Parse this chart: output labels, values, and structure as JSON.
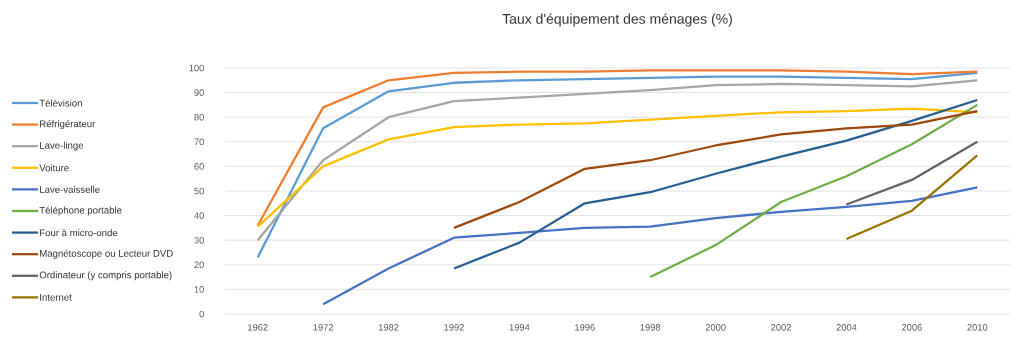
{
  "chart_data": {
    "type": "line",
    "title": "Taux d'équipement des ménages (%)",
    "categories": [
      "1962",
      "1972",
      "1982",
      "1992",
      "1994",
      "1996",
      "1998",
      "2000",
      "2002",
      "2004",
      "2006",
      "2010"
    ],
    "series": [
      {
        "name": "Télévision",
        "color": "#5b9bd5",
        "values": [
          23,
          75.5,
          90.5,
          94,
          95,
          95.5,
          96,
          96.5,
          96.5,
          96,
          95.5,
          98
        ]
      },
      {
        "name": "Réfrigérateur",
        "color": "#ed7d31",
        "values": [
          36,
          84,
          95,
          98,
          98.5,
          98.5,
          99,
          99,
          99,
          98.5,
          97.5,
          98.5
        ]
      },
      {
        "name": "Lave-linge",
        "color": "#a5a5a5",
        "values": [
          30,
          62.5,
          80,
          86.5,
          88,
          89.5,
          91,
          93,
          93.5,
          93,
          92.5,
          95
        ]
      },
      {
        "name": "Voiture",
        "color": "#ffc000",
        "values": [
          35.5,
          60,
          71,
          76,
          77,
          77.5,
          79,
          80.5,
          82,
          82.5,
          83.5,
          82
        ]
      },
      {
        "name": "Lave-vaisselle",
        "color": "#4472c4",
        "values": [
          null,
          4,
          18.5,
          31,
          33,
          35,
          35.5,
          39,
          41.5,
          43.5,
          46,
          51.5
        ]
      },
      {
        "name": "Téléphone portable",
        "color": "#70ad47",
        "values": [
          null,
          null,
          null,
          null,
          null,
          null,
          15,
          28,
          45.5,
          56,
          69,
          85
        ]
      },
      {
        "name": "Four à micro-onde",
        "color": "#255e91",
        "values": [
          null,
          null,
          null,
          18.5,
          29,
          45,
          49.5,
          57,
          64,
          70.5,
          78.5,
          87
        ]
      },
      {
        "name": "Magnétoscope ou Lecteur DVD",
        "color": "#9e480e",
        "values": [
          null,
          null,
          null,
          35,
          45.5,
          59,
          62.5,
          68.5,
          73,
          75.5,
          77,
          82.5
        ]
      },
      {
        "name": "Ordinateur (y compris portable)",
        "color": "#636363",
        "values": [
          null,
          null,
          null,
          null,
          null,
          null,
          null,
          null,
          null,
          44.5,
          54.5,
          70
        ]
      },
      {
        "name": "Internet",
        "color": "#997300",
        "values": [
          null,
          null,
          null,
          null,
          null,
          null,
          null,
          null,
          null,
          30.5,
          42,
          64.5
        ]
      }
    ],
    "ylim": [
      0,
      100
    ],
    "yticks": [
      0,
      10,
      20,
      30,
      40,
      50,
      60,
      70,
      80,
      90,
      100
    ],
    "grid": "y",
    "legend": "left",
    "marker": "none",
    "line_style": "solid"
  }
}
